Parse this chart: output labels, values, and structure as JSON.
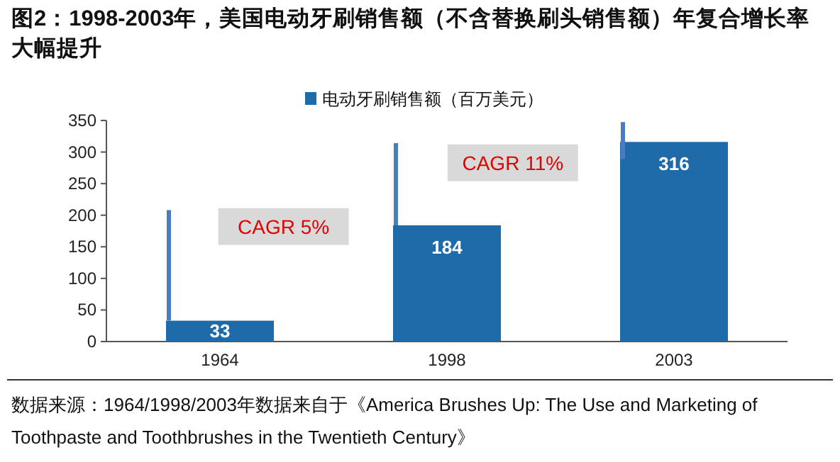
{
  "chart_data": {
    "type": "bar",
    "title": "图2：1998-2003年，美国电动牙刷销售额（不含替换刷头销售额）年复合增长率大幅提升",
    "categories": [
      "1964",
      "1998",
      "2003"
    ],
    "series": [
      {
        "name": "电动牙刷销售额（百万美元）",
        "color": "#1f6aa8",
        "values": [
          33,
          184,
          316
        ]
      }
    ],
    "ylim": [
      0,
      350
    ],
    "yticks": [
      0,
      50,
      100,
      150,
      200,
      250,
      300,
      350
    ],
    "data_labels": true,
    "legend": "top",
    "grid": false,
    "annotations": [
      "CAGR 5%",
      "CAGR 11%",
      "数据来源：1964/1998/2003年数据来自于《America Brushes Up: The Use and Marketing of Toothpaste and Toothbrushes in the Twentieth Century》"
    ]
  }
}
